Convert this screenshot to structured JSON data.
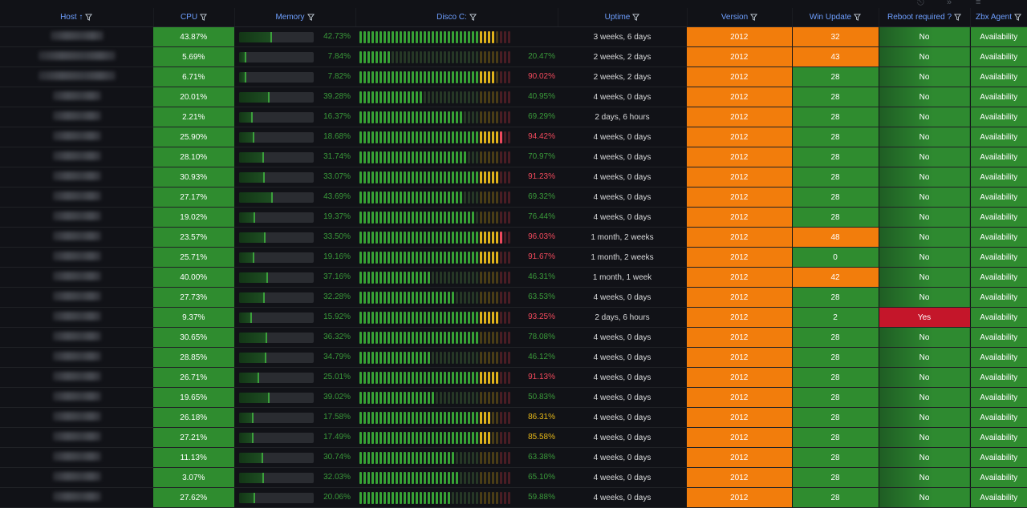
{
  "columns": [
    {
      "key": "host",
      "label": "Host",
      "sort": "↑"
    },
    {
      "key": "cpu",
      "label": "CPU"
    },
    {
      "key": "memory",
      "label": "Memory"
    },
    {
      "key": "disk",
      "label": "Disco C:"
    },
    {
      "key": "uptime",
      "label": "Uptime"
    },
    {
      "key": "version",
      "label": "Version"
    },
    {
      "key": "win_update",
      "label": "Win Update"
    },
    {
      "key": "reboot",
      "label": "Reboot required ?"
    },
    {
      "key": "agent",
      "label": "Zbx Agent"
    }
  ],
  "colors": {
    "green": "#2f8c2f",
    "orange": "#f27d0c",
    "red": "#c4162a",
    "header_text": "#6e9fff",
    "background": "#111217"
  },
  "rows": [
    {
      "cpu": "43.87%",
      "memory": "42.73%",
      "memory_value": 42.73,
      "disk": "",
      "disk_value": 90.0,
      "uptime": "3 weeks, 6 days",
      "version": "2012",
      "win_update": "32",
      "wu_color": "orange",
      "reboot": "No",
      "agent": "Availability"
    },
    {
      "cpu": "5.69%",
      "memory": "7.84%",
      "memory_value": 7.84,
      "disk": "20.47%",
      "disk_value": 20.47,
      "uptime": "2 weeks, 2 days",
      "version": "2012",
      "win_update": "43",
      "wu_color": "orange",
      "reboot": "No",
      "agent": "Availability"
    },
    {
      "cpu": "6.71%",
      "memory": "7.82%",
      "memory_value": 7.82,
      "disk": "90.02%",
      "disk_value": 90.02,
      "uptime": "2 weeks, 2 days",
      "version": "2012",
      "win_update": "28",
      "wu_color": "green",
      "reboot": "No",
      "agent": "Availability"
    },
    {
      "cpu": "20.01%",
      "memory": "39.28%",
      "memory_value": 39.28,
      "disk": "40.95%",
      "disk_value": 40.95,
      "uptime": "4 weeks, 0 days",
      "version": "2012",
      "win_update": "28",
      "wu_color": "green",
      "reboot": "No",
      "agent": "Availability"
    },
    {
      "cpu": "2.21%",
      "memory": "16.37%",
      "memory_value": 16.37,
      "disk": "69.29%",
      "disk_value": 69.29,
      "uptime": "2 days, 6 hours",
      "version": "2012",
      "win_update": "28",
      "wu_color": "green",
      "reboot": "No",
      "agent": "Availability"
    },
    {
      "cpu": "25.90%",
      "memory": "18.68%",
      "memory_value": 18.68,
      "disk": "94.42%",
      "disk_value": 94.42,
      "uptime": "4 weeks, 0 days",
      "version": "2012",
      "win_update": "28",
      "wu_color": "green",
      "reboot": "No",
      "agent": "Availability"
    },
    {
      "cpu": "28.10%",
      "memory": "31.74%",
      "memory_value": 31.74,
      "disk": "70.97%",
      "disk_value": 70.97,
      "uptime": "4 weeks, 0 days",
      "version": "2012",
      "win_update": "28",
      "wu_color": "green",
      "reboot": "No",
      "agent": "Availability"
    },
    {
      "cpu": "30.93%",
      "memory": "33.07%",
      "memory_value": 33.07,
      "disk": "91.23%",
      "disk_value": 91.23,
      "uptime": "4 weeks, 0 days",
      "version": "2012",
      "win_update": "28",
      "wu_color": "green",
      "reboot": "No",
      "agent": "Availability"
    },
    {
      "cpu": "27.17%",
      "memory": "43.69%",
      "memory_value": 43.69,
      "disk": "69.32%",
      "disk_value": 69.32,
      "uptime": "4 weeks, 0 days",
      "version": "2012",
      "win_update": "28",
      "wu_color": "green",
      "reboot": "No",
      "agent": "Availability"
    },
    {
      "cpu": "19.02%",
      "memory": "19.37%",
      "memory_value": 19.37,
      "disk": "76.44%",
      "disk_value": 76.44,
      "uptime": "4 weeks, 0 days",
      "version": "2012",
      "win_update": "28",
      "wu_color": "green",
      "reboot": "No",
      "agent": "Availability"
    },
    {
      "cpu": "23.57%",
      "memory": "33.50%",
      "memory_value": 33.5,
      "disk": "96.03%",
      "disk_value": 96.03,
      "uptime": "1 month, 2 weeks",
      "version": "2012",
      "win_update": "48",
      "wu_color": "orange",
      "reboot": "No",
      "agent": "Availability"
    },
    {
      "cpu": "25.71%",
      "memory": "19.16%",
      "memory_value": 19.16,
      "disk": "91.67%",
      "disk_value": 91.67,
      "uptime": "1 month, 2 weeks",
      "version": "2012",
      "win_update": "0",
      "wu_color": "green",
      "reboot": "No",
      "agent": "Availability"
    },
    {
      "cpu": "40.00%",
      "memory": "37.16%",
      "memory_value": 37.16,
      "disk": "46.31%",
      "disk_value": 46.31,
      "uptime": "1 month, 1 week",
      "version": "2012",
      "win_update": "42",
      "wu_color": "orange",
      "reboot": "No",
      "agent": "Availability"
    },
    {
      "cpu": "27.73%",
      "memory": "32.28%",
      "memory_value": 32.28,
      "disk": "63.53%",
      "disk_value": 63.53,
      "uptime": "4 weeks, 0 days",
      "version": "2012",
      "win_update": "28",
      "wu_color": "green",
      "reboot": "No",
      "agent": "Availability"
    },
    {
      "cpu": "9.37%",
      "memory": "15.92%",
      "memory_value": 15.92,
      "disk": "93.25%",
      "disk_value": 93.25,
      "uptime": "2 days, 6 hours",
      "version": "2012",
      "win_update": "2",
      "wu_color": "green",
      "reboot": "Yes",
      "agent": "Availability"
    },
    {
      "cpu": "30.65%",
      "memory": "36.32%",
      "memory_value": 36.32,
      "disk": "78.08%",
      "disk_value": 78.08,
      "uptime": "4 weeks, 0 days",
      "version": "2012",
      "win_update": "28",
      "wu_color": "green",
      "reboot": "No",
      "agent": "Availability"
    },
    {
      "cpu": "28.85%",
      "memory": "34.79%",
      "memory_value": 34.79,
      "disk": "46.12%",
      "disk_value": 46.12,
      "uptime": "4 weeks, 0 days",
      "version": "2012",
      "win_update": "28",
      "wu_color": "green",
      "reboot": "No",
      "agent": "Availability"
    },
    {
      "cpu": "26.71%",
      "memory": "25.01%",
      "memory_value": 25.01,
      "disk": "91.13%",
      "disk_value": 91.13,
      "uptime": "4 weeks, 0 days",
      "version": "2012",
      "win_update": "28",
      "wu_color": "green",
      "reboot": "No",
      "agent": "Availability"
    },
    {
      "cpu": "19.65%",
      "memory": "39.02%",
      "memory_value": 39.02,
      "disk": "50.83%",
      "disk_value": 50.83,
      "uptime": "4 weeks, 0 days",
      "version": "2012",
      "win_update": "28",
      "wu_color": "green",
      "reboot": "No",
      "agent": "Availability"
    },
    {
      "cpu": "26.18%",
      "memory": "17.58%",
      "memory_value": 17.58,
      "disk": "86.31%",
      "disk_value": 86.31,
      "uptime": "4 weeks, 0 days",
      "version": "2012",
      "win_update": "28",
      "wu_color": "green",
      "reboot": "No",
      "agent": "Availability"
    },
    {
      "cpu": "27.21%",
      "memory": "17.49%",
      "memory_value": 17.49,
      "disk": "85.58%",
      "disk_value": 85.58,
      "uptime": "4 weeks, 0 days",
      "version": "2012",
      "win_update": "28",
      "wu_color": "green",
      "reboot": "No",
      "agent": "Availability"
    },
    {
      "cpu": "11.13%",
      "memory": "30.74%",
      "memory_value": 30.74,
      "disk": "63.38%",
      "disk_value": 63.38,
      "uptime": "4 weeks, 0 days",
      "version": "2012",
      "win_update": "28",
      "wu_color": "green",
      "reboot": "No",
      "agent": "Availability"
    },
    {
      "cpu": "3.07%",
      "memory": "32.03%",
      "memory_value": 32.03,
      "disk": "65.10%",
      "disk_value": 65.1,
      "uptime": "4 weeks, 0 days",
      "version": "2012",
      "win_update": "28",
      "wu_color": "green",
      "reboot": "No",
      "agent": "Availability"
    },
    {
      "cpu": "27.62%",
      "memory": "20.06%",
      "memory_value": 20.06,
      "disk": "59.88%",
      "disk_value": 59.88,
      "uptime": "4 weeks, 0 days",
      "version": "2012",
      "win_update": "28",
      "wu_color": "green",
      "reboot": "No",
      "agent": "Availability"
    }
  ]
}
